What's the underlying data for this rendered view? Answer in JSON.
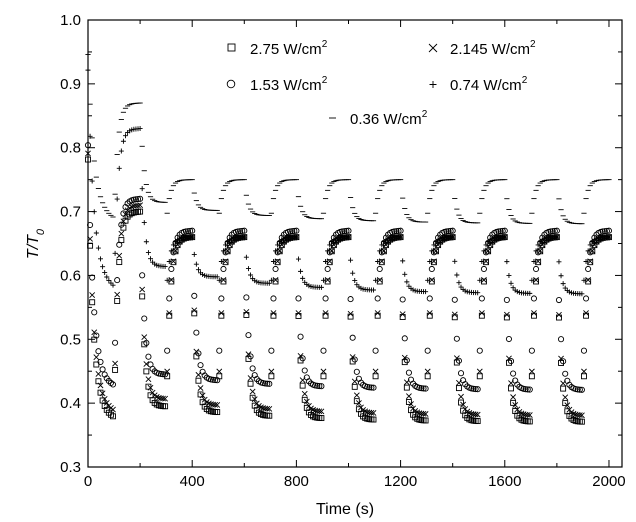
{
  "chart_data": {
    "type": "scatter",
    "title": "",
    "xlabel": "Time (s)",
    "ylabel_main": "T/T",
    "ylabel_sub": "0",
    "xlim": [
      0,
      2050
    ],
    "ylim": [
      0.3,
      1.0
    ],
    "x_ticks": [
      0,
      400,
      800,
      1200,
      1600,
      2000
    ],
    "x_tick_labels": [
      "0",
      "400",
      "800",
      "1200",
      "1600",
      "2000"
    ],
    "y_ticks": [
      0.3,
      0.4,
      0.5,
      0.6,
      0.7,
      0.8,
      0.9,
      1.0
    ],
    "y_tick_labels": [
      "0.3",
      "0.4",
      "0.5",
      "0.6",
      "0.7",
      "0.8",
      "0.9",
      "1.0"
    ],
    "grid": false,
    "legend_position": "top",
    "cycle_period_s": 200,
    "series": [
      {
        "name": "2.75 W/cm²",
        "label_main": "2.75 W/cm",
        "label_sup": "2",
        "marker": "square",
        "t_cold_start": 0.5,
        "t_cold_min": 0.37,
        "t_hot_plateau": 0.66,
        "t_hot_first": 0.7
      },
      {
        "name": "2.145 W/cm²",
        "label_main": "2.145 W/cm",
        "label_sup": "2",
        "marker": "x",
        "t_cold_start": 0.52,
        "t_cold_min": 0.38,
        "t_hot_plateau": 0.66,
        "t_hot_first": 0.71
      },
      {
        "name": "1.53 W/cm²",
        "label_main": "1.53 W/cm",
        "label_sup": "2",
        "marker": "circle",
        "t_cold_start": 0.55,
        "t_cold_min": 0.42,
        "t_hot_plateau": 0.67,
        "t_hot_first": 0.72
      },
      {
        "name": "0.74 W/cm²",
        "label_main": "0.74 W/cm",
        "label_sup": "2",
        "marker": "plus",
        "t_cold_start": 0.8,
        "t_cold_min": 0.57,
        "t_hot_plateau": 0.66,
        "t_hot_first": 0.83
      },
      {
        "name": "0.36 W/cm²",
        "label_main": "0.36 W/cm",
        "label_sup": "2",
        "marker": "dash",
        "t_cold_start": 0.86,
        "t_cold_min": 0.68,
        "t_hot_plateau": 0.75,
        "t_hot_first": 0.87
      }
    ]
  }
}
